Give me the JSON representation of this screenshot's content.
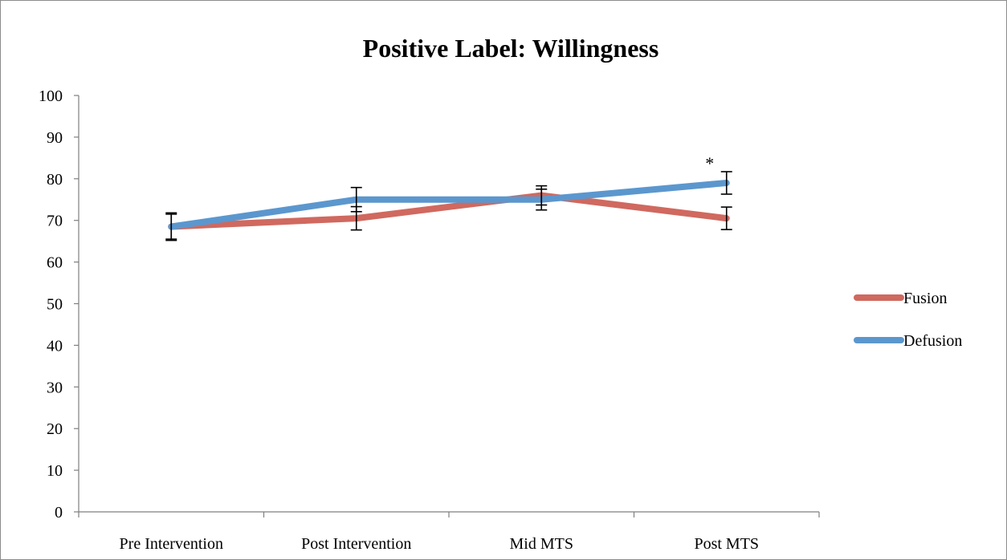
{
  "chart_data": {
    "type": "line",
    "title": "Positive Label: Willingness",
    "categories": [
      "Pre Intervention",
      "Post Intervention",
      "Mid MTS",
      "Post MTS"
    ],
    "ylim": [
      0,
      100
    ],
    "yticks": [
      0,
      10,
      20,
      30,
      40,
      50,
      60,
      70,
      80,
      90,
      100
    ],
    "grid": false,
    "legend_position": "right",
    "series": [
      {
        "name": "Fusion",
        "color": "#d0695f",
        "values": [
          68.5,
          70.5,
          76,
          70.5
        ],
        "error": [
          3,
          2.8,
          2.3,
          2.7
        ]
      },
      {
        "name": "Defusion",
        "color": "#5b97ce",
        "values": [
          68.5,
          75,
          75,
          79
        ],
        "error": [
          3.3,
          2.9,
          2.5,
          2.7
        ]
      }
    ],
    "annotations": [
      {
        "text": "*",
        "category": "Post MTS",
        "y": 83
      }
    ]
  }
}
